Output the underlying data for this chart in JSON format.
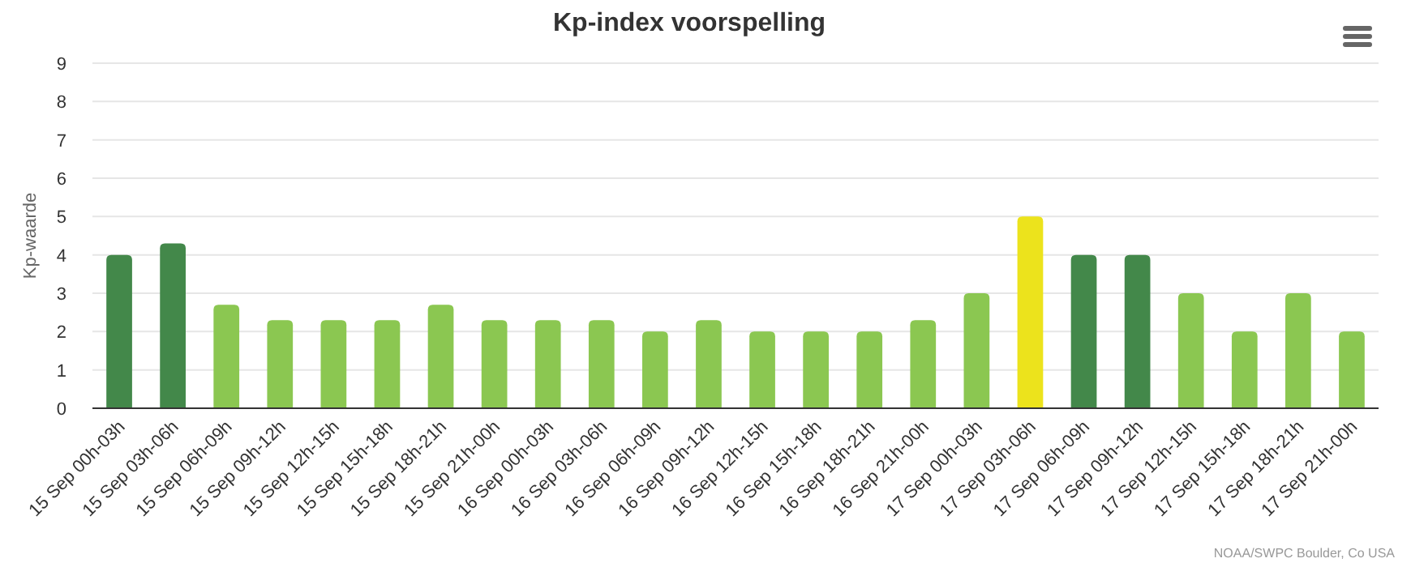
{
  "chart_data": {
    "type": "bar",
    "title": "Kp-index voorspelling",
    "ylabel": "Kp-waarde",
    "categories": [
      "15 Sep 00h-03h",
      "15 Sep 03h-06h",
      "15 Sep 06h-09h",
      "15 Sep 09h-12h",
      "15 Sep 12h-15h",
      "15 Sep 15h-18h",
      "15 Sep 18h-21h",
      "15 Sep 21h-00h",
      "16 Sep 00h-03h",
      "16 Sep 03h-06h",
      "16 Sep 06h-09h",
      "16 Sep 09h-12h",
      "16 Sep 12h-15h",
      "16 Sep 15h-18h",
      "16 Sep 18h-21h",
      "16 Sep 21h-00h",
      "17 Sep 00h-03h",
      "17 Sep 03h-06h",
      "17 Sep 06h-09h",
      "17 Sep 09h-12h",
      "17 Sep 12h-15h",
      "17 Sep 15h-18h",
      "17 Sep 18h-21h",
      "17 Sep 21h-00h"
    ],
    "values": [
      4,
      4.3,
      2.7,
      2.3,
      2.3,
      2.3,
      2.7,
      2.3,
      2.3,
      2.3,
      2,
      2.3,
      2,
      2,
      2,
      2.3,
      3,
      5,
      4,
      4,
      3,
      2,
      3,
      2
    ],
    "colors": [
      "#43884a",
      "#43884a",
      "#8bc751",
      "#8bc751",
      "#8bc751",
      "#8bc751",
      "#8bc751",
      "#8bc751",
      "#8bc751",
      "#8bc751",
      "#8bc751",
      "#8bc751",
      "#8bc751",
      "#8bc751",
      "#8bc751",
      "#8bc751",
      "#8bc751",
      "#ece31c",
      "#43884a",
      "#43884a",
      "#8bc751",
      "#8bc751",
      "#8bc751",
      "#8bc751"
    ],
    "ylim": [
      0,
      9
    ],
    "yticks": [
      0,
      1,
      2,
      3,
      4,
      5,
      6,
      7,
      8,
      9
    ],
    "grid": "y",
    "annotations": [
      "NOAA/SWPC Boulder, Co USA"
    ]
  }
}
